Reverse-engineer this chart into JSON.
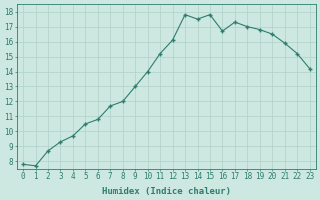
{
  "x": [
    0,
    1,
    2,
    3,
    4,
    5,
    6,
    7,
    8,
    9,
    10,
    11,
    12,
    13,
    14,
    15,
    16,
    17,
    18,
    19,
    20,
    21,
    22,
    23
  ],
  "y": [
    7.8,
    7.7,
    8.7,
    9.3,
    9.7,
    10.5,
    10.8,
    11.7,
    12.0,
    13.0,
    14.0,
    15.2,
    16.1,
    17.8,
    17.5,
    17.8,
    16.7,
    17.3,
    17.0,
    16.8,
    16.5,
    15.9,
    15.2,
    14.2
  ],
  "xlabel": "Humidex (Indice chaleur)",
  "xlim": [
    -0.5,
    23.5
  ],
  "ylim": [
    7.5,
    18.5
  ],
  "yticks": [
    8,
    9,
    10,
    11,
    12,
    13,
    14,
    15,
    16,
    17,
    18
  ],
  "xticks": [
    0,
    1,
    2,
    3,
    4,
    5,
    6,
    7,
    8,
    9,
    10,
    11,
    12,
    13,
    14,
    15,
    16,
    17,
    18,
    19,
    20,
    21,
    22,
    23
  ],
  "line_color": "#2e7d6e",
  "marker_color": "#2e7d6e",
  "bg_color": "#cde8e0",
  "grid_color": "#b0d0c8",
  "label_fontsize": 6.5,
  "tick_fontsize": 5.5
}
